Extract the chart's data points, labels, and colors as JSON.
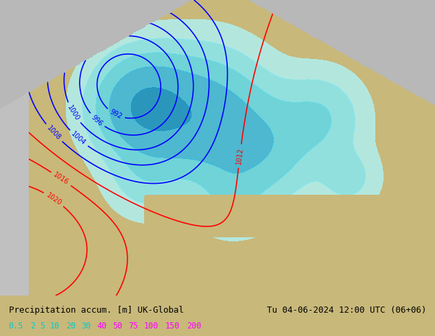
{
  "title_left": "Precipitation accum. [m] UK-Global",
  "title_right": "Tu 04-06-2024 12:00 UTC (06+06)",
  "legend_values": [
    "0.5",
    "2",
    "5",
    "10",
    "20",
    "30",
    "40",
    "50",
    "75",
    "100",
    "150",
    "200"
  ],
  "legend_colors": [
    "#00ffff",
    "#00ffff",
    "#00ffff",
    "#00ffff",
    "#00ffff",
    "#00ffff",
    "#ff00ff",
    "#ff00ff",
    "#ff00ff",
    "#ff00ff",
    "#ff00ff",
    "#ff00ff"
  ],
  "bg_color": "#c8b87a",
  "map_bg": "#c8b87a",
  "ocean_color": "#d0d0d0",
  "land_color": "#c8b87a",
  "figsize": [
    6.34,
    4.9
  ],
  "dpi": 100
}
